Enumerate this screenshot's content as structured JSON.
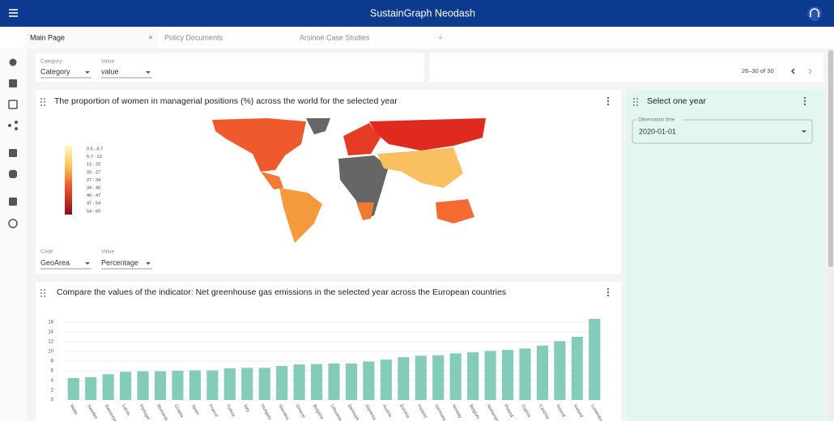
{
  "header": {
    "title": "SustainGraph Neodash"
  },
  "tabs": [
    "Main Page",
    "Policy Documents",
    "Arsinoe Case Studies"
  ],
  "filters": {
    "category_label": "Category",
    "category_value": "Category",
    "value_label": "Value",
    "value_value": "value",
    "pagination": "26–30 of 30"
  },
  "map_card": {
    "title": "The proportion of women in managerial positions (%) across the world for the selected year",
    "legend": [
      "0.6 - 6.7",
      "6.7 - 13",
      "13 - 20",
      "20 - 27",
      "27 - 34",
      "34 - 40",
      "40 - 47",
      "47 - 54",
      "54 - 60"
    ],
    "code_label": "Code",
    "code_value": "GeoArea",
    "value_label": "Value",
    "value_value": "Percentage"
  },
  "year_card": {
    "title": "Select one year",
    "field_label": "Observation time",
    "field_value": "2020-01-01"
  },
  "chart_data": {
    "type": "bar",
    "title": "Compare the values of the indicator: Net greenhouse gas emissions in the selected year across the European countries",
    "categories": [
      "Malta",
      "Sweden",
      "Switzerland",
      "Latvia",
      "Portugal",
      "Romania",
      "Croatia",
      "Spain",
      "France",
      "Turkey",
      "Italy",
      "Hungary",
      "Slovakia",
      "Greece",
      "Bulgaria",
      "Lithuania",
      "Denmark",
      "Slovenia",
      "Austria",
      "Estonia",
      "Finland",
      "Germany",
      "Norway",
      "Belgium",
      "Netherlands",
      "Poland",
      "Cyprus",
      "Czechia",
      "Ireland",
      "Iceland",
      "Luxembourg"
    ],
    "values": [
      4.5,
      4.7,
      5.3,
      5.8,
      5.9,
      5.9,
      6.0,
      6.1,
      6.1,
      6.5,
      6.6,
      6.6,
      7.0,
      7.3,
      7.4,
      7.5,
      7.5,
      7.9,
      8.3,
      8.8,
      9.1,
      9.2,
      9.6,
      9.8,
      10.1,
      10.3,
      10.6,
      11.2,
      12.1,
      13.0,
      16.7
    ],
    "color": "#84ccba",
    "ylim": [
      0,
      17
    ],
    "yticks": [
      0,
      2,
      4,
      6,
      8,
      10,
      12,
      14,
      16
    ],
    "grid": true
  }
}
